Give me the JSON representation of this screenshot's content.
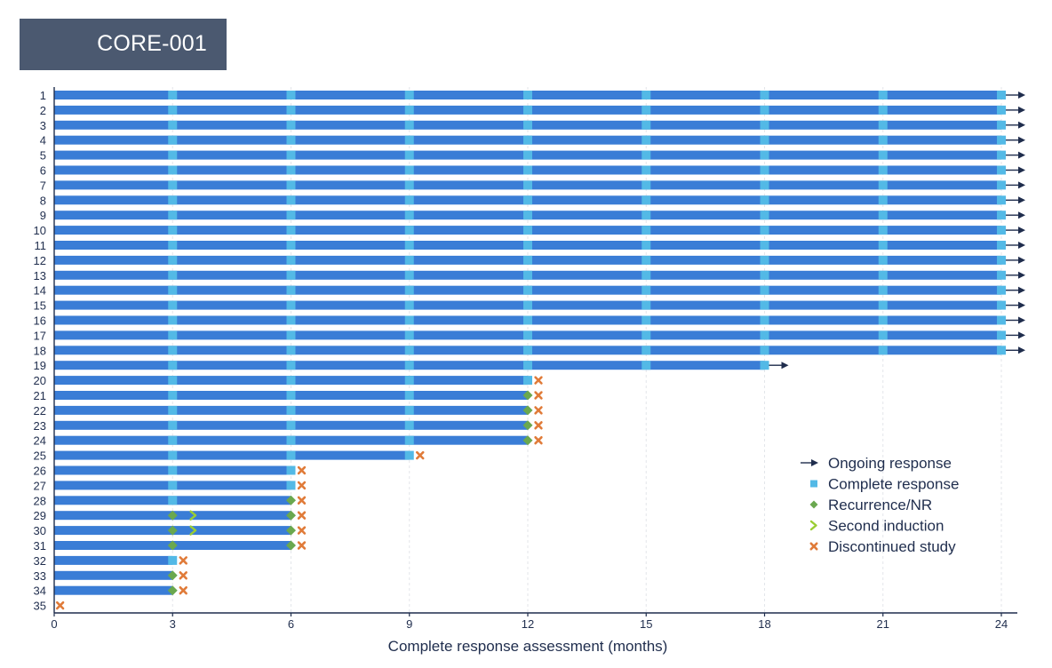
{
  "panel_label": "CORE-001",
  "chart_data": {
    "type": "swimmer",
    "xlabel": "Complete response assessment (months)",
    "xlim": [
      0,
      24
    ],
    "x_ticks": [
      0,
      3,
      6,
      9,
      12,
      15,
      18,
      21,
      24
    ],
    "assessment_times": [
      3,
      6,
      9,
      12,
      15,
      18,
      21,
      24
    ],
    "grid": "vertical dashed at ticks",
    "legend_placement": "bottom-right",
    "legend": [
      {
        "key": "ongoing",
        "label": "Ongoing response"
      },
      {
        "key": "cr",
        "label": "Complete response"
      },
      {
        "key": "recurrence",
        "label": "Recurrence/NR"
      },
      {
        "key": "second_induction",
        "label": "Second induction"
      },
      {
        "key": "discontinued",
        "label": "Discontinued study"
      }
    ],
    "colors": {
      "bar": "#3a7dd6",
      "cr": "#53b9e6",
      "recurrence": "#6aa84f",
      "second_induction": "#9acd32",
      "discontinued": "#e07b39",
      "arrow": "#1f2d4d",
      "axis": "#1f2d4d"
    },
    "patients": [
      {
        "id": "1",
        "duration": 24,
        "cr": [
          3,
          6,
          9,
          12,
          15,
          18,
          21,
          24
        ],
        "recurrence": [],
        "second_induction": [],
        "discontinued": null,
        "ongoing": true
      },
      {
        "id": "2",
        "duration": 24,
        "cr": [
          3,
          6,
          9,
          12,
          15,
          18,
          21,
          24
        ],
        "recurrence": [],
        "second_induction": [],
        "discontinued": null,
        "ongoing": true
      },
      {
        "id": "3",
        "duration": 24,
        "cr": [
          3,
          6,
          9,
          12,
          15,
          18,
          21,
          24
        ],
        "recurrence": [],
        "second_induction": [],
        "discontinued": null,
        "ongoing": true
      },
      {
        "id": "4",
        "duration": 24,
        "cr": [
          3,
          6,
          9,
          12,
          15,
          18,
          21,
          24
        ],
        "recurrence": [],
        "second_induction": [],
        "discontinued": null,
        "ongoing": true
      },
      {
        "id": "5",
        "duration": 24,
        "cr": [
          3,
          6,
          9,
          12,
          15,
          18,
          21,
          24
        ],
        "recurrence": [],
        "second_induction": [],
        "discontinued": null,
        "ongoing": true
      },
      {
        "id": "6",
        "duration": 24,
        "cr": [
          3,
          6,
          9,
          12,
          15,
          18,
          21,
          24
        ],
        "recurrence": [],
        "second_induction": [],
        "discontinued": null,
        "ongoing": true
      },
      {
        "id": "7",
        "duration": 24,
        "cr": [
          3,
          6,
          9,
          12,
          15,
          18,
          21,
          24
        ],
        "recurrence": [],
        "second_induction": [],
        "discontinued": null,
        "ongoing": true
      },
      {
        "id": "8",
        "duration": 24,
        "cr": [
          3,
          6,
          9,
          12,
          15,
          18,
          21,
          24
        ],
        "recurrence": [],
        "second_induction": [],
        "discontinued": null,
        "ongoing": true
      },
      {
        "id": "9",
        "duration": 24,
        "cr": [
          3,
          6,
          9,
          12,
          15,
          18,
          21,
          24
        ],
        "recurrence": [],
        "second_induction": [],
        "discontinued": null,
        "ongoing": true
      },
      {
        "id": "10",
        "duration": 24,
        "cr": [
          3,
          6,
          9,
          12,
          15,
          18,
          21,
          24
        ],
        "recurrence": [],
        "second_induction": [],
        "discontinued": null,
        "ongoing": true
      },
      {
        "id": "11",
        "duration": 24,
        "cr": [
          3,
          6,
          9,
          12,
          15,
          18,
          21,
          24
        ],
        "recurrence": [],
        "second_induction": [],
        "discontinued": null,
        "ongoing": true
      },
      {
        "id": "12",
        "duration": 24,
        "cr": [
          3,
          6,
          9,
          12,
          15,
          18,
          21,
          24
        ],
        "recurrence": [],
        "second_induction": [],
        "discontinued": null,
        "ongoing": true
      },
      {
        "id": "13",
        "duration": 24,
        "cr": [
          3,
          6,
          9,
          12,
          15,
          18,
          21,
          24
        ],
        "recurrence": [],
        "second_induction": [],
        "discontinued": null,
        "ongoing": true
      },
      {
        "id": "14",
        "duration": 24,
        "cr": [
          3,
          6,
          9,
          12,
          15,
          18,
          21,
          24
        ],
        "recurrence": [],
        "second_induction": [],
        "discontinued": null,
        "ongoing": true
      },
      {
        "id": "15",
        "duration": 24,
        "cr": [
          3,
          6,
          9,
          12,
          15,
          18,
          21,
          24
        ],
        "recurrence": [],
        "second_induction": [],
        "discontinued": null,
        "ongoing": true
      },
      {
        "id": "16",
        "duration": 24,
        "cr": [
          3,
          6,
          9,
          12,
          15,
          18,
          21,
          24
        ],
        "recurrence": [],
        "second_induction": [],
        "discontinued": null,
        "ongoing": true
      },
      {
        "id": "17",
        "duration": 24,
        "cr": [
          3,
          6,
          9,
          12,
          15,
          18,
          21,
          24
        ],
        "recurrence": [],
        "second_induction": [],
        "discontinued": null,
        "ongoing": true
      },
      {
        "id": "18",
        "duration": 24,
        "cr": [
          3,
          6,
          9,
          12,
          15,
          18,
          21,
          24
        ],
        "recurrence": [],
        "second_induction": [],
        "discontinued": null,
        "ongoing": true
      },
      {
        "id": "19",
        "duration": 18,
        "cr": [
          3,
          6,
          9,
          12,
          15,
          18
        ],
        "recurrence": [],
        "second_induction": [],
        "discontinued": null,
        "ongoing": true
      },
      {
        "id": "20",
        "duration": 12,
        "cr": [
          3,
          6,
          9,
          12
        ],
        "recurrence": [],
        "second_induction": [],
        "discontinued": 12.25,
        "ongoing": false
      },
      {
        "id": "21",
        "duration": 12,
        "cr": [
          3,
          6,
          9
        ],
        "recurrence": [
          12
        ],
        "second_induction": [],
        "discontinued": 12.25,
        "ongoing": false
      },
      {
        "id": "22",
        "duration": 12,
        "cr": [
          3,
          6,
          9
        ],
        "recurrence": [
          12
        ],
        "second_induction": [],
        "discontinued": 12.25,
        "ongoing": false
      },
      {
        "id": "23",
        "duration": 12,
        "cr": [
          3,
          6,
          9
        ],
        "recurrence": [
          12
        ],
        "second_induction": [],
        "discontinued": 12.25,
        "ongoing": false
      },
      {
        "id": "24",
        "duration": 12,
        "cr": [
          3,
          6,
          9
        ],
        "recurrence": [
          12
        ],
        "second_induction": [],
        "discontinued": 12.25,
        "ongoing": false
      },
      {
        "id": "25",
        "duration": 9,
        "cr": [
          3,
          6,
          9
        ],
        "recurrence": [],
        "second_induction": [],
        "discontinued": 9.25,
        "ongoing": false
      },
      {
        "id": "26",
        "duration": 6,
        "cr": [
          3,
          6
        ],
        "recurrence": [],
        "second_induction": [],
        "discontinued": 6.25,
        "ongoing": false
      },
      {
        "id": "27",
        "duration": 6,
        "cr": [
          3,
          6
        ],
        "recurrence": [],
        "second_induction": [],
        "discontinued": 6.25,
        "ongoing": false
      },
      {
        "id": "28",
        "duration": 6,
        "cr": [
          3
        ],
        "recurrence": [
          6
        ],
        "second_induction": [],
        "discontinued": 6.25,
        "ongoing": false
      },
      {
        "id": "29",
        "duration": 6,
        "cr": [],
        "recurrence": [
          3,
          6
        ],
        "second_induction": [
          3.3
        ],
        "discontinued": 6.25,
        "ongoing": false
      },
      {
        "id": "30",
        "duration": 6,
        "cr": [],
        "recurrence": [
          3,
          6
        ],
        "second_induction": [
          3.3
        ],
        "discontinued": 6.25,
        "ongoing": false
      },
      {
        "id": "31",
        "duration": 6,
        "cr": [],
        "recurrence": [
          3,
          6
        ],
        "second_induction": [],
        "discontinued": 6.25,
        "ongoing": false
      },
      {
        "id": "32",
        "duration": 3,
        "cr": [
          3
        ],
        "recurrence": [],
        "second_induction": [],
        "discontinued": 3.25,
        "ongoing": false
      },
      {
        "id": "33",
        "duration": 3,
        "cr": [],
        "recurrence": [
          3
        ],
        "second_induction": [],
        "discontinued": 3.25,
        "ongoing": false
      },
      {
        "id": "34",
        "duration": 3,
        "cr": [],
        "recurrence": [
          3
        ],
        "second_induction": [],
        "discontinued": 3.25,
        "ongoing": false
      },
      {
        "id": "35",
        "duration": 0,
        "cr": [],
        "recurrence": [],
        "second_induction": [],
        "discontinued": 0.15,
        "ongoing": false
      }
    ]
  }
}
